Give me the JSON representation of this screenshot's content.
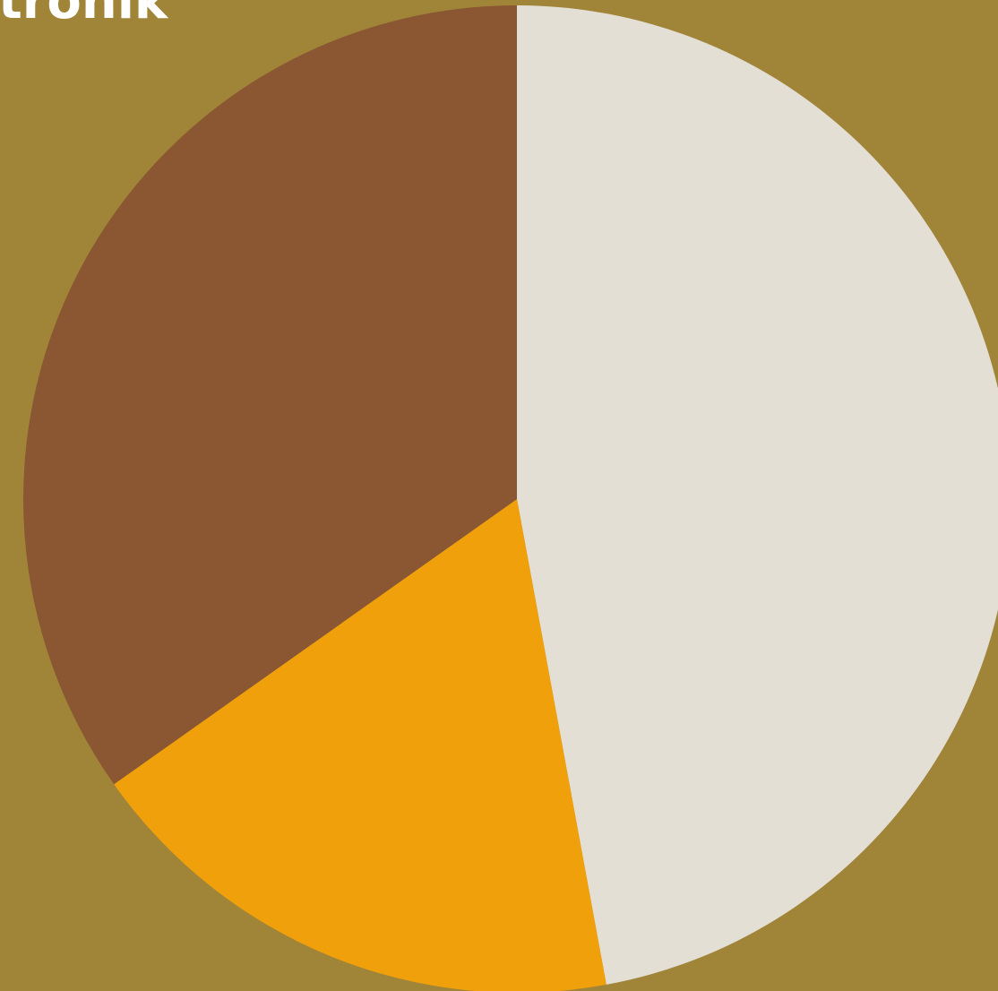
{
  "brand": {
    "text": "tronik"
  },
  "colors": {
    "background": "#a08438",
    "brand_text": "#ffffff"
  },
  "chart_data": {
    "type": "pie",
    "start_angle": "12 o'clock",
    "direction": "clockwise",
    "title": "",
    "slices": [
      {
        "value": 47.1,
        "color": "#e3dfd5"
      },
      {
        "value": 18.1,
        "color": "#f0a00b"
      },
      {
        "value": 34.8,
        "color": "#8a5732"
      }
    ]
  }
}
